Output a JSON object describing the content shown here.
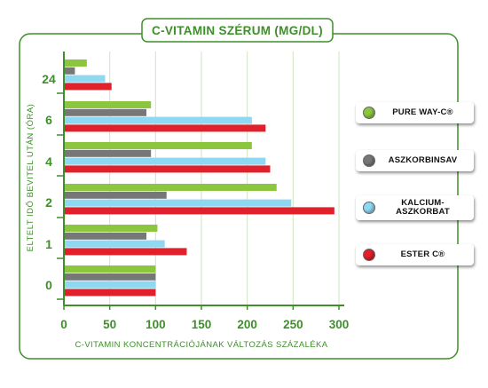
{
  "chart_data": {
    "type": "bar",
    "orientation": "horizontal",
    "title": "C-VITAMIN SZÉRUM (MG/DL)",
    "xlabel": "C-VITAMIN KONCENTRÁCIÓJÁNAK VÁLTOZÁS SZÁZALÉKA",
    "ylabel": "ELTELT IDŐ BEVITEL UTÁN (ÓRA)",
    "categories": [
      "24",
      "6",
      "4",
      "2",
      "1",
      "0"
    ],
    "xlim": [
      0,
      300
    ],
    "xticks": [
      "0",
      "50",
      "100",
      "150",
      "200",
      "250",
      "300"
    ],
    "grid": true,
    "legend_position": "right",
    "series": [
      {
        "name": "PURE WAY-C®",
        "color": "#8cc63f",
        "values": [
          25,
          95,
          205,
          232,
          102,
          100
        ]
      },
      {
        "name": "ASZKORBINSAV",
        "color": "#777777",
        "values": [
          12,
          90,
          95,
          112,
          90,
          100
        ]
      },
      {
        "name": "KALCIUM-\nASZKORBAT",
        "color": "#8fd8f2",
        "values": [
          45,
          205,
          220,
          248,
          110,
          100
        ]
      },
      {
        "name": "ESTER C®",
        "color": "#e0202a",
        "values": [
          52,
          220,
          225,
          295,
          134,
          100
        ]
      }
    ]
  },
  "colors": {
    "frame_green": "#3e8f2a",
    "axis_green": "#3e8f2a",
    "grid_green": "#cfe3c2"
  }
}
